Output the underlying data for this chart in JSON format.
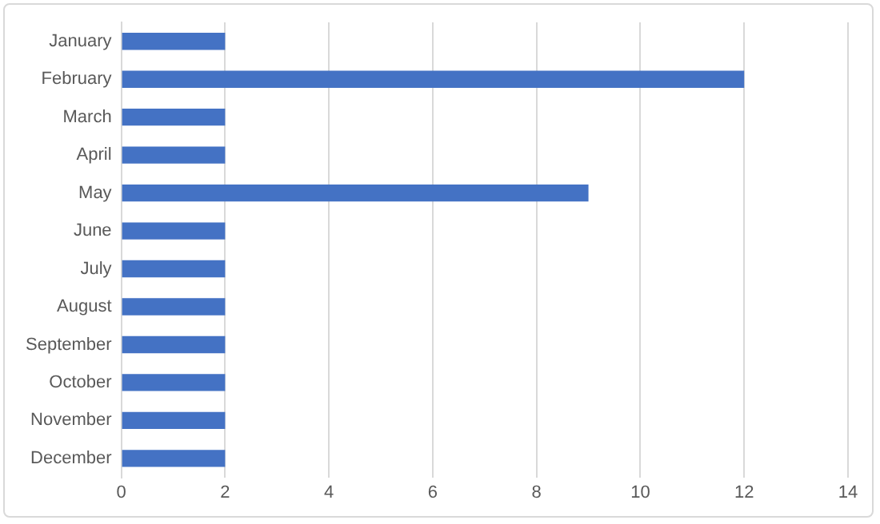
{
  "chart_data": {
    "type": "bar",
    "orientation": "horizontal",
    "categories": [
      "January",
      "February",
      "March",
      "April",
      "May",
      "June",
      "July",
      "August",
      "September",
      "October",
      "November",
      "December"
    ],
    "values": [
      2,
      12,
      2,
      2,
      9,
      2,
      2,
      2,
      2,
      2,
      2,
      2
    ],
    "color": "#4472c4",
    "xlim": [
      0,
      14
    ],
    "xticks": [
      0,
      2,
      4,
      6,
      8,
      10,
      12,
      14
    ],
    "grid": "x"
  }
}
